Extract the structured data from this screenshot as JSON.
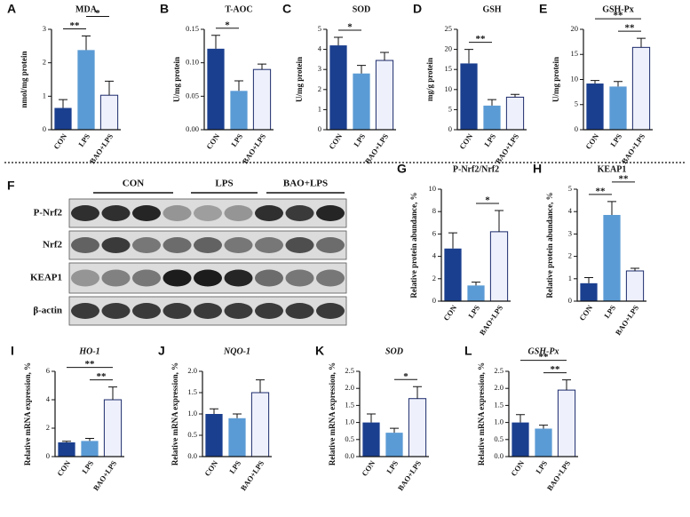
{
  "chart_data": [
    {
      "type": "bar",
      "panel": "A",
      "title": "MDA",
      "ylabel": "nmol/mg protein",
      "categories": [
        "CON",
        "LPS",
        "BAO+LPS"
      ],
      "values": [
        0.65,
        2.38,
        1.03
      ],
      "errors": [
        0.25,
        0.42,
        0.42
      ],
      "colors": [
        "#1b3f8f",
        "#5b9bd5",
        "#eef0fb"
      ],
      "ylim": [
        0,
        3
      ],
      "yticks": [
        0,
        1,
        2,
        3
      ],
      "significance": [
        {
          "from": 0,
          "to": 1,
          "label": "**"
        },
        {
          "from": 1,
          "to": 2,
          "label": "*"
        }
      ]
    },
    {
      "type": "bar",
      "panel": "B",
      "title": "T-AOC",
      "ylabel": "U/mg protein",
      "categories": [
        "CON",
        "LPS",
        "BAO+LPS"
      ],
      "values": [
        0.121,
        0.058,
        0.09
      ],
      "errors": [
        0.02,
        0.015,
        0.008
      ],
      "colors": [
        "#1b3f8f",
        "#5b9bd5",
        "#eef0fb"
      ],
      "ylim": [
        0,
        0.15
      ],
      "yticks": [
        {
          "value": 0,
          "label": "0.00"
        },
        {
          "value": 0.05,
          "label": "0.05"
        },
        {
          "value": 0.1,
          "label": "0.10"
        },
        {
          "value": 0.15,
          "label": "0.15"
        }
      ],
      "significance": [
        {
          "from": 0,
          "to": 1,
          "label": "*"
        }
      ]
    },
    {
      "type": "bar",
      "panel": "C",
      "title": "SOD",
      "ylabel": "U/mg protein",
      "categories": [
        "CON",
        "LPS",
        "BAO+LPS"
      ],
      "values": [
        4.2,
        2.8,
        3.45
      ],
      "errors": [
        0.4,
        0.4,
        0.4
      ],
      "colors": [
        "#1b3f8f",
        "#5b9bd5",
        "#eef0fb"
      ],
      "ylim": [
        0,
        5
      ],
      "yticks": [
        0,
        1,
        2,
        3,
        4,
        5
      ],
      "significance": [
        {
          "from": 0,
          "to": 1,
          "label": "*"
        }
      ]
    },
    {
      "type": "bar",
      "panel": "D",
      "title": "GSH",
      "ylabel": "mg/g protein",
      "categories": [
        "CON",
        "LPS",
        "BAO+LPS"
      ],
      "values": [
        16.5,
        6.0,
        8.1
      ],
      "errors": [
        3.5,
        1.5,
        0.7
      ],
      "colors": [
        "#1b3f8f",
        "#5b9bd5",
        "#eef0fb"
      ],
      "ylim": [
        0,
        25
      ],
      "yticks": [
        0,
        5,
        10,
        15,
        20,
        25
      ],
      "significance": [
        {
          "from": 0,
          "to": 1,
          "label": "**"
        }
      ]
    },
    {
      "type": "bar",
      "panel": "E",
      "title": "GSH-Px",
      "ylabel": "U/mg protein",
      "categories": [
        "CON",
        "LPS",
        "BAO+LPS"
      ],
      "values": [
        9.2,
        8.6,
        16.4
      ],
      "errors": [
        0.6,
        1.0,
        1.8
      ],
      "colors": [
        "#1b3f8f",
        "#5b9bd5",
        "#eef0fb"
      ],
      "ylim": [
        0,
        20
      ],
      "yticks": [
        0,
        5,
        10,
        15,
        20
      ],
      "significance": [
        {
          "from": 1,
          "to": 2,
          "label": "**"
        },
        {
          "from": 0,
          "to": 2,
          "label": "**"
        }
      ]
    },
    {
      "type": "bar",
      "panel": "G",
      "title": "P-Nrf2/Nrf2",
      "ylabel": "Relative protein abundance, %",
      "categories": [
        "CON",
        "LPS",
        "BAO+LPS"
      ],
      "values": [
        4.7,
        1.4,
        6.2
      ],
      "errors": [
        1.4,
        0.3,
        1.9
      ],
      "colors": [
        "#1b3f8f",
        "#5b9bd5",
        "#eef0fb"
      ],
      "ylim": [
        0,
        10
      ],
      "yticks": [
        0,
        2,
        4,
        6,
        8,
        10
      ],
      "significance": [
        {
          "from": 1,
          "to": 2,
          "label": "*"
        }
      ]
    },
    {
      "type": "bar",
      "panel": "H",
      "title": "KEAP1",
      "ylabel": "Relative protein abundance, %",
      "categories": [
        "CON",
        "LPS",
        "BAO+LPS"
      ],
      "values": [
        0.8,
        3.85,
        1.35
      ],
      "errors": [
        0.25,
        0.6,
        0.12
      ],
      "colors": [
        "#1b3f8f",
        "#5b9bd5",
        "#eef0fb"
      ],
      "ylim": [
        0,
        5
      ],
      "yticks": [
        0,
        1,
        2,
        3,
        4,
        5
      ],
      "significance": [
        {
          "from": 0,
          "to": 1,
          "label": "**"
        },
        {
          "from": 1,
          "to": 2,
          "label": "**"
        }
      ]
    },
    {
      "type": "bar",
      "panel": "I",
      "title": "HO-1",
      "italic": true,
      "ylabel": "Relative mRNA expression, %",
      "categories": [
        "CON",
        "LPS",
        "BAO+LPS"
      ],
      "values": [
        1.0,
        1.1,
        4.0
      ],
      "errors": [
        0.08,
        0.18,
        0.9
      ],
      "colors": [
        "#1b3f8f",
        "#5b9bd5",
        "#eef0fb"
      ],
      "ylim": [
        0,
        6
      ],
      "yticks": [
        0,
        2,
        4,
        6
      ],
      "significance": [
        {
          "from": 1,
          "to": 2,
          "label": "**"
        },
        {
          "from": 0,
          "to": 2,
          "label": "**"
        }
      ]
    },
    {
      "type": "bar",
      "panel": "J",
      "title": "NQO-1",
      "italic": true,
      "ylabel": "Relative mRNA expression, %",
      "categories": [
        "CON",
        "LPS",
        "BAO+LPS"
      ],
      "values": [
        1.0,
        0.9,
        1.5
      ],
      "errors": [
        0.12,
        0.1,
        0.3
      ],
      "colors": [
        "#1b3f8f",
        "#5b9bd5",
        "#eef0fb"
      ],
      "ylim": [
        0,
        2
      ],
      "yticks": [
        {
          "value": 0,
          "label": "0.0"
        },
        {
          "value": 0.5,
          "label": "0.5"
        },
        {
          "value": 1,
          "label": "1.0"
        },
        {
          "value": 1.5,
          "label": "1.5"
        },
        {
          "value": 2,
          "label": "2.0"
        }
      ],
      "significance": []
    },
    {
      "type": "bar",
      "panel": "K",
      "title": "SOD",
      "italic": true,
      "ylabel": "Relative mRNA expression, %",
      "categories": [
        "CON",
        "LPS",
        "BAO+LPS"
      ],
      "values": [
        1.0,
        0.7,
        1.7
      ],
      "errors": [
        0.25,
        0.13,
        0.35
      ],
      "colors": [
        "#1b3f8f",
        "#5b9bd5",
        "#eef0fb"
      ],
      "ylim": [
        0,
        2.5
      ],
      "yticks": [
        {
          "value": 0,
          "label": "0.0"
        },
        {
          "value": 0.5,
          "label": "0.5"
        },
        {
          "value": 1,
          "label": "1.0"
        },
        {
          "value": 1.5,
          "label": "1.5"
        },
        {
          "value": 2,
          "label": "2.0"
        },
        {
          "value": 2.5,
          "label": "2.5"
        }
      ],
      "significance": [
        {
          "from": 1,
          "to": 2,
          "label": "*"
        }
      ]
    },
    {
      "type": "bar",
      "panel": "L",
      "title": "GSH-Px",
      "italic": true,
      "ylabel": "Relative mRNA expression, %",
      "categories": [
        "CON",
        "LPS",
        "BAO+LPS"
      ],
      "values": [
        1.0,
        0.82,
        1.95
      ],
      "errors": [
        0.23,
        0.1,
        0.3
      ],
      "colors": [
        "#1b3f8f",
        "#5b9bd5",
        "#eef0fb"
      ],
      "ylim": [
        0,
        2.5
      ],
      "yticks": [
        {
          "value": 0,
          "label": "0.0"
        },
        {
          "value": 0.5,
          "label": "0.5"
        },
        {
          "value": 1,
          "label": "1.0"
        },
        {
          "value": 1.5,
          "label": "1.5"
        },
        {
          "value": 2,
          "label": "2.0"
        },
        {
          "value": 2.5,
          "label": "2.5"
        }
      ],
      "significance": [
        {
          "from": 1,
          "to": 2,
          "label": "**"
        },
        {
          "from": 0,
          "to": 2,
          "label": "**"
        }
      ]
    }
  ],
  "blot": {
    "panel": "F",
    "groups": [
      "CON",
      "LPS",
      "BAO+LPS"
    ],
    "rows": [
      "P-Nrf2",
      "Nrf2",
      "KEAP1",
      "β-actin"
    ]
  }
}
